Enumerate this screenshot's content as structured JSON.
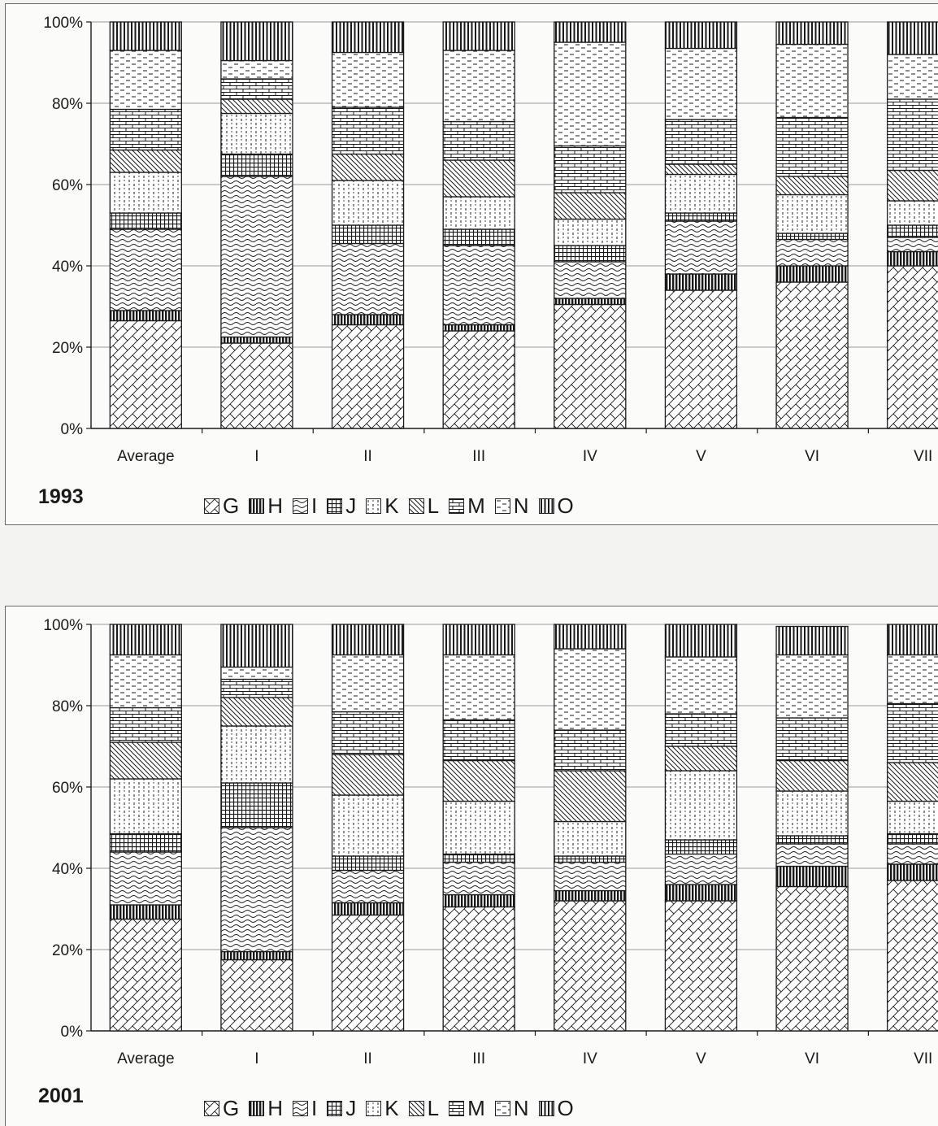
{
  "colors": {
    "background": "#f3f3f1",
    "ink": "#1a1a1a",
    "grid": "#9a9a9a"
  },
  "legend": [
    {
      "key": "G",
      "icon": "diagonal-crosshatch-pattern"
    },
    {
      "key": "H",
      "icon": "dense-vertical-lines-pattern"
    },
    {
      "key": "I",
      "icon": "wave-pattern"
    },
    {
      "key": "J",
      "icon": "grid-pattern"
    },
    {
      "key": "K",
      "icon": "dotted-dash-pattern"
    },
    {
      "key": "L",
      "icon": "diagonal-lines-pattern"
    },
    {
      "key": "M",
      "icon": "brick-pattern"
    },
    {
      "key": "N",
      "icon": "horizontal-dash-pattern"
    },
    {
      "key": "O",
      "icon": "vertical-bars-pattern"
    }
  ],
  "chart_data": [
    {
      "type": "bar",
      "stacked": true,
      "percent": true,
      "title": "1993",
      "categories": [
        "Average",
        "I",
        "II",
        "III",
        "IV",
        "V",
        "VI",
        "VII"
      ],
      "yticks": [
        "0%",
        "20%",
        "40%",
        "60%",
        "80%",
        "100%"
      ],
      "ylim": [
        0,
        100
      ],
      "grid": true,
      "legend_position": "bottom",
      "series": [
        {
          "name": "G",
          "values": [
            26.5,
            21,
            25.5,
            24,
            30.5,
            34,
            36,
            40
          ]
        },
        {
          "name": "H",
          "values": [
            2.5,
            1.5,
            2.5,
            1.5,
            1.5,
            4,
            4,
            3.5
          ]
        },
        {
          "name": "I",
          "values": [
            20,
            39.5,
            17.5,
            19.5,
            9,
            13,
            6.5,
            3.5
          ]
        },
        {
          "name": "J",
          "values": [
            4,
            5.5,
            4.5,
            4,
            4,
            2,
            1.5,
            3
          ]
        },
        {
          "name": "K",
          "values": [
            10,
            10,
            11,
            8,
            6.5,
            9.5,
            9.5,
            6
          ]
        },
        {
          "name": "L",
          "values": [
            5.5,
            3.5,
            6.5,
            9,
            6.5,
            2.5,
            4.5,
            7.5
          ]
        },
        {
          "name": "M",
          "values": [
            10,
            5,
            11.5,
            9.5,
            11.5,
            11,
            14.5,
            17.5
          ]
        },
        {
          "name": "N",
          "values": [
            14.5,
            4.5,
            13.5,
            17.5,
            25.5,
            17.5,
            18,
            11
          ]
        },
        {
          "name": "O",
          "values": [
            7,
            9.5,
            7.5,
            7,
            5,
            6.5,
            5.5,
            8
          ]
        }
      ]
    },
    {
      "type": "bar",
      "stacked": true,
      "percent": true,
      "title": "2001",
      "categories": [
        "Average",
        "I",
        "II",
        "III",
        "IV",
        "V",
        "VI",
        "VII"
      ],
      "yticks": [
        "0%",
        "20%",
        "40%",
        "60%",
        "80%",
        "100%"
      ],
      "ylim": [
        0,
        100
      ],
      "grid": true,
      "legend_position": "bottom",
      "series": [
        {
          "name": "G",
          "values": [
            27.5,
            17.5,
            28.5,
            30.5,
            32,
            32,
            35.5,
            37
          ]
        },
        {
          "name": "H",
          "values": [
            3.5,
            2,
            3,
            3,
            2.5,
            4,
            5,
            4
          ]
        },
        {
          "name": "I",
          "values": [
            13,
            30.5,
            8,
            8,
            7,
            7.5,
            5.5,
            5
          ]
        },
        {
          "name": "J",
          "values": [
            4.5,
            11,
            3.5,
            2,
            1.5,
            3.5,
            2,
            2.5
          ]
        },
        {
          "name": "K",
          "values": [
            13.5,
            14,
            15,
            13,
            8.5,
            17,
            11,
            8
          ]
        },
        {
          "name": "L",
          "values": [
            9,
            7,
            10,
            10,
            12.5,
            6,
            7.5,
            9.5
          ]
        },
        {
          "name": "M",
          "values": [
            8.5,
            4.5,
            10.5,
            10,
            10,
            8,
            10.5,
            14.5
          ]
        },
        {
          "name": "N",
          "values": [
            13,
            3,
            14,
            16,
            20,
            14,
            15.5,
            12
          ]
        },
        {
          "name": "O",
          "values": [
            7.5,
            10.5,
            7.5,
            7.5,
            6,
            8,
            7,
            7.5
          ]
        }
      ]
    }
  ]
}
